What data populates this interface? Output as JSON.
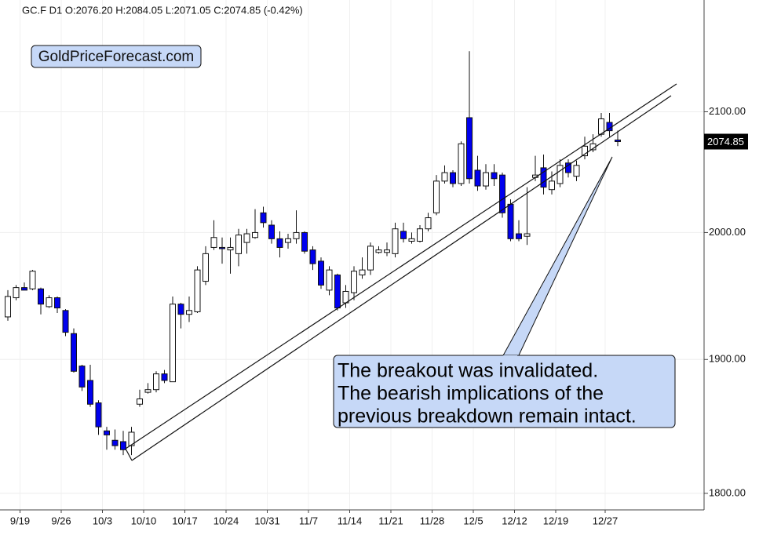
{
  "chart_data": {
    "type": "candlestick",
    "title": "GC.F  D1  O:2076.20  H:2084.05  L:2071.05  C:2074.85  (-0.42%)",
    "watermark": "GoldPriceForecast.com",
    "annotation": [
      "The breakout was invalidated.",
      "The bearish implications of the",
      "previous breakdown remain intact."
    ],
    "categories": [
      null,
      "9/19",
      null,
      null,
      null,
      null,
      "9/26",
      null,
      null,
      null,
      null,
      "10/3",
      null,
      null,
      null,
      null,
      "10/10",
      null,
      null,
      null,
      null,
      "10/17",
      null,
      null,
      null,
      null,
      "10/24",
      null,
      null,
      null,
      null,
      "10/31",
      null,
      null,
      null,
      null,
      "11/7",
      null,
      null,
      null,
      null,
      "11/14",
      null,
      null,
      null,
      null,
      "11/21",
      null,
      null,
      null,
      null,
      "11/28",
      null,
      null,
      null,
      null,
      "12/5",
      null,
      null,
      null,
      null,
      "12/12",
      null,
      null,
      null,
      null,
      "12/19",
      null,
      null,
      null,
      null,
      null,
      "12/27",
      null,
      null
    ],
    "open": [
      1933,
      1948,
      1956,
      1955,
      1955,
      1941,
      1948,
      1938,
      1920,
      1895,
      1884,
      1867,
      1846,
      1839,
      1838,
      1835,
      1866,
      1875,
      1877,
      1889,
      1883,
      1943,
      1935,
      1937,
      1961,
      1988,
      1988,
      1986,
      1983,
      1992,
      1996,
      2016,
      2006,
      1995,
      1992,
      1995,
      2000,
      1986,
      1977,
      1954,
      1966,
      1944,
      1952,
      1966,
      1970,
      1984,
      1984,
      1983,
      2001,
      1993,
      1993,
      2003,
      2016,
      2042,
      2049,
      2040,
      2095,
      2051,
      2038,
      2049,
      2047,
      2023,
      1999,
      1997,
      2045,
      2053,
      2035,
      2040,
      2057,
      2046,
      2063,
      2068,
      2081,
      2091,
      2076.2
    ],
    "high": [
      1954,
      1958,
      1960,
      1970,
      1956,
      1950,
      1949,
      1939,
      1924,
      1896,
      1896,
      1869,
      1849,
      1847,
      1846,
      1849,
      1877,
      1882,
      1891,
      1892,
      1949,
      1944,
      1949,
      1973,
      1989,
      2010,
      1996,
      1996,
      2003,
      2003,
      2019,
      2021,
      2010,
      2001,
      1999,
      2018,
      2001,
      1989,
      1980,
      1973,
      1967,
      1958,
      1973,
      1980,
      1992,
      1989,
      1992,
      2008,
      2008,
      2000,
      2006,
      2016,
      2047,
      2055,
      2051,
      2075,
      2152,
      2063,
      2056,
      2056,
      2049,
      2027,
      2010,
      2037,
      2063,
      2064,
      2050,
      2060,
      2060,
      2059,
      2079,
      2081,
      2099,
      2099,
      2084.05
    ],
    "low": [
      1930,
      1946,
      1954,
      1954,
      1935,
      1940,
      1936,
      1918,
      1890,
      1876,
      1864,
      1843,
      1832,
      1832,
      1828,
      1828,
      1864,
      1874,
      1875,
      1882,
      1883,
      1924,
      1929,
      1936,
      1958,
      1986,
      1975,
      1967,
      1973,
      1983,
      1995,
      2004,
      1991,
      1980,
      1987,
      1991,
      1983,
      1970,
      1955,
      1950,
      1938,
      1940,
      1946,
      1963,
      1966,
      1983,
      1981,
      1980,
      1992,
      1991,
      1992,
      2001,
      2014,
      2040,
      2037,
      2038,
      2040,
      2034,
      2035,
      2038,
      2012,
      1993,
      1993,
      1990,
      2042,
      2031,
      2031,
      2037,
      2045,
      2042,
      2060,
      2066,
      2079,
      2079,
      2071.05
    ],
    "close": [
      1949,
      1956,
      1954,
      1969,
      1943,
      1948,
      1940,
      1921,
      1891,
      1879,
      1866,
      1849,
      1843,
      1835,
      1832,
      1845,
      1870,
      1877,
      1889,
      1884,
      1943,
      1935,
      1938,
      1970,
      1983,
      1996,
      1987,
      1988,
      1998,
      1999,
      2000,
      2008,
      1995,
      1988,
      1995,
      2000,
      1985,
      1975,
      1958,
      1970,
      1940,
      1953,
      1969,
      1970,
      1989,
      1986,
      1986,
      2003,
      1995,
      1995,
      2003,
      2012,
      2042,
      2049,
      2040,
      2073,
      2044,
      2038,
      2049,
      2044,
      2016,
      1995,
      1995,
      1999,
      2047,
      2037,
      2042,
      2055,
      2049,
      2055,
      2071,
      2073,
      2094,
      2084,
      2074.85
    ],
    "up_color": "#ffffff",
    "down_color": "#0000ee",
    "ylim": [
      1788,
      2197
    ],
    "log_scale": true,
    "yticks": [
      {
        "value": 1800,
        "label": "1800.00"
      },
      {
        "value": 1900,
        "label": "1900.00"
      },
      {
        "value": 2000,
        "label": "2000.00"
      },
      {
        "value": 2100,
        "label": "2100.00"
      }
    ],
    "grid": true
  }
}
